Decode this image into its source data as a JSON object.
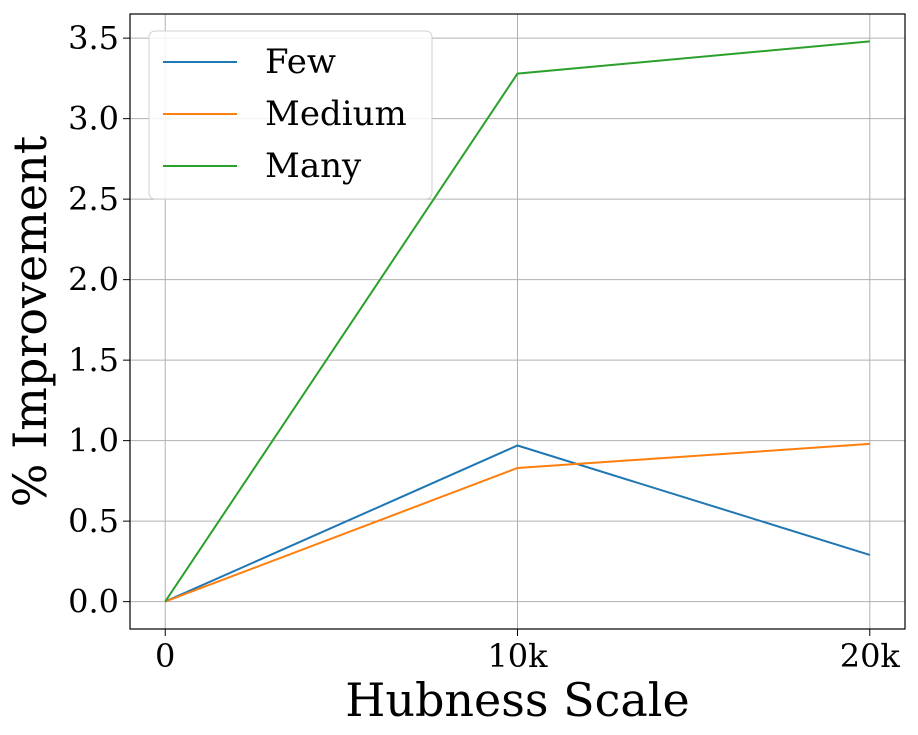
{
  "chart_data": {
    "type": "line",
    "title": "",
    "xlabel": "Hubness Scale",
    "ylabel": "% Improvement",
    "categories": [
      "0",
      "10k",
      "20k"
    ],
    "x": [
      0,
      10000,
      20000
    ],
    "xlim": [
      -1000,
      21000
    ],
    "ylim": [
      -0.17,
      3.65
    ],
    "yticks": [
      "0.0",
      "0.5",
      "1.0",
      "1.5",
      "2.0",
      "2.5",
      "3.0",
      "3.5"
    ],
    "ytick_values": [
      0,
      0.5,
      1.0,
      1.5,
      2.0,
      2.5,
      3.0,
      3.5
    ],
    "grid": true,
    "legend_position": "top-left",
    "series": [
      {
        "name": "Few",
        "color": "#1f77b4",
        "values": [
          0.0,
          0.97,
          0.29
        ]
      },
      {
        "name": "Medium",
        "color": "#ff7f0e",
        "values": [
          0.0,
          0.83,
          0.98
        ]
      },
      {
        "name": "Many",
        "color": "#2ca02c",
        "values": [
          0.0,
          3.28,
          3.48
        ]
      }
    ]
  }
}
